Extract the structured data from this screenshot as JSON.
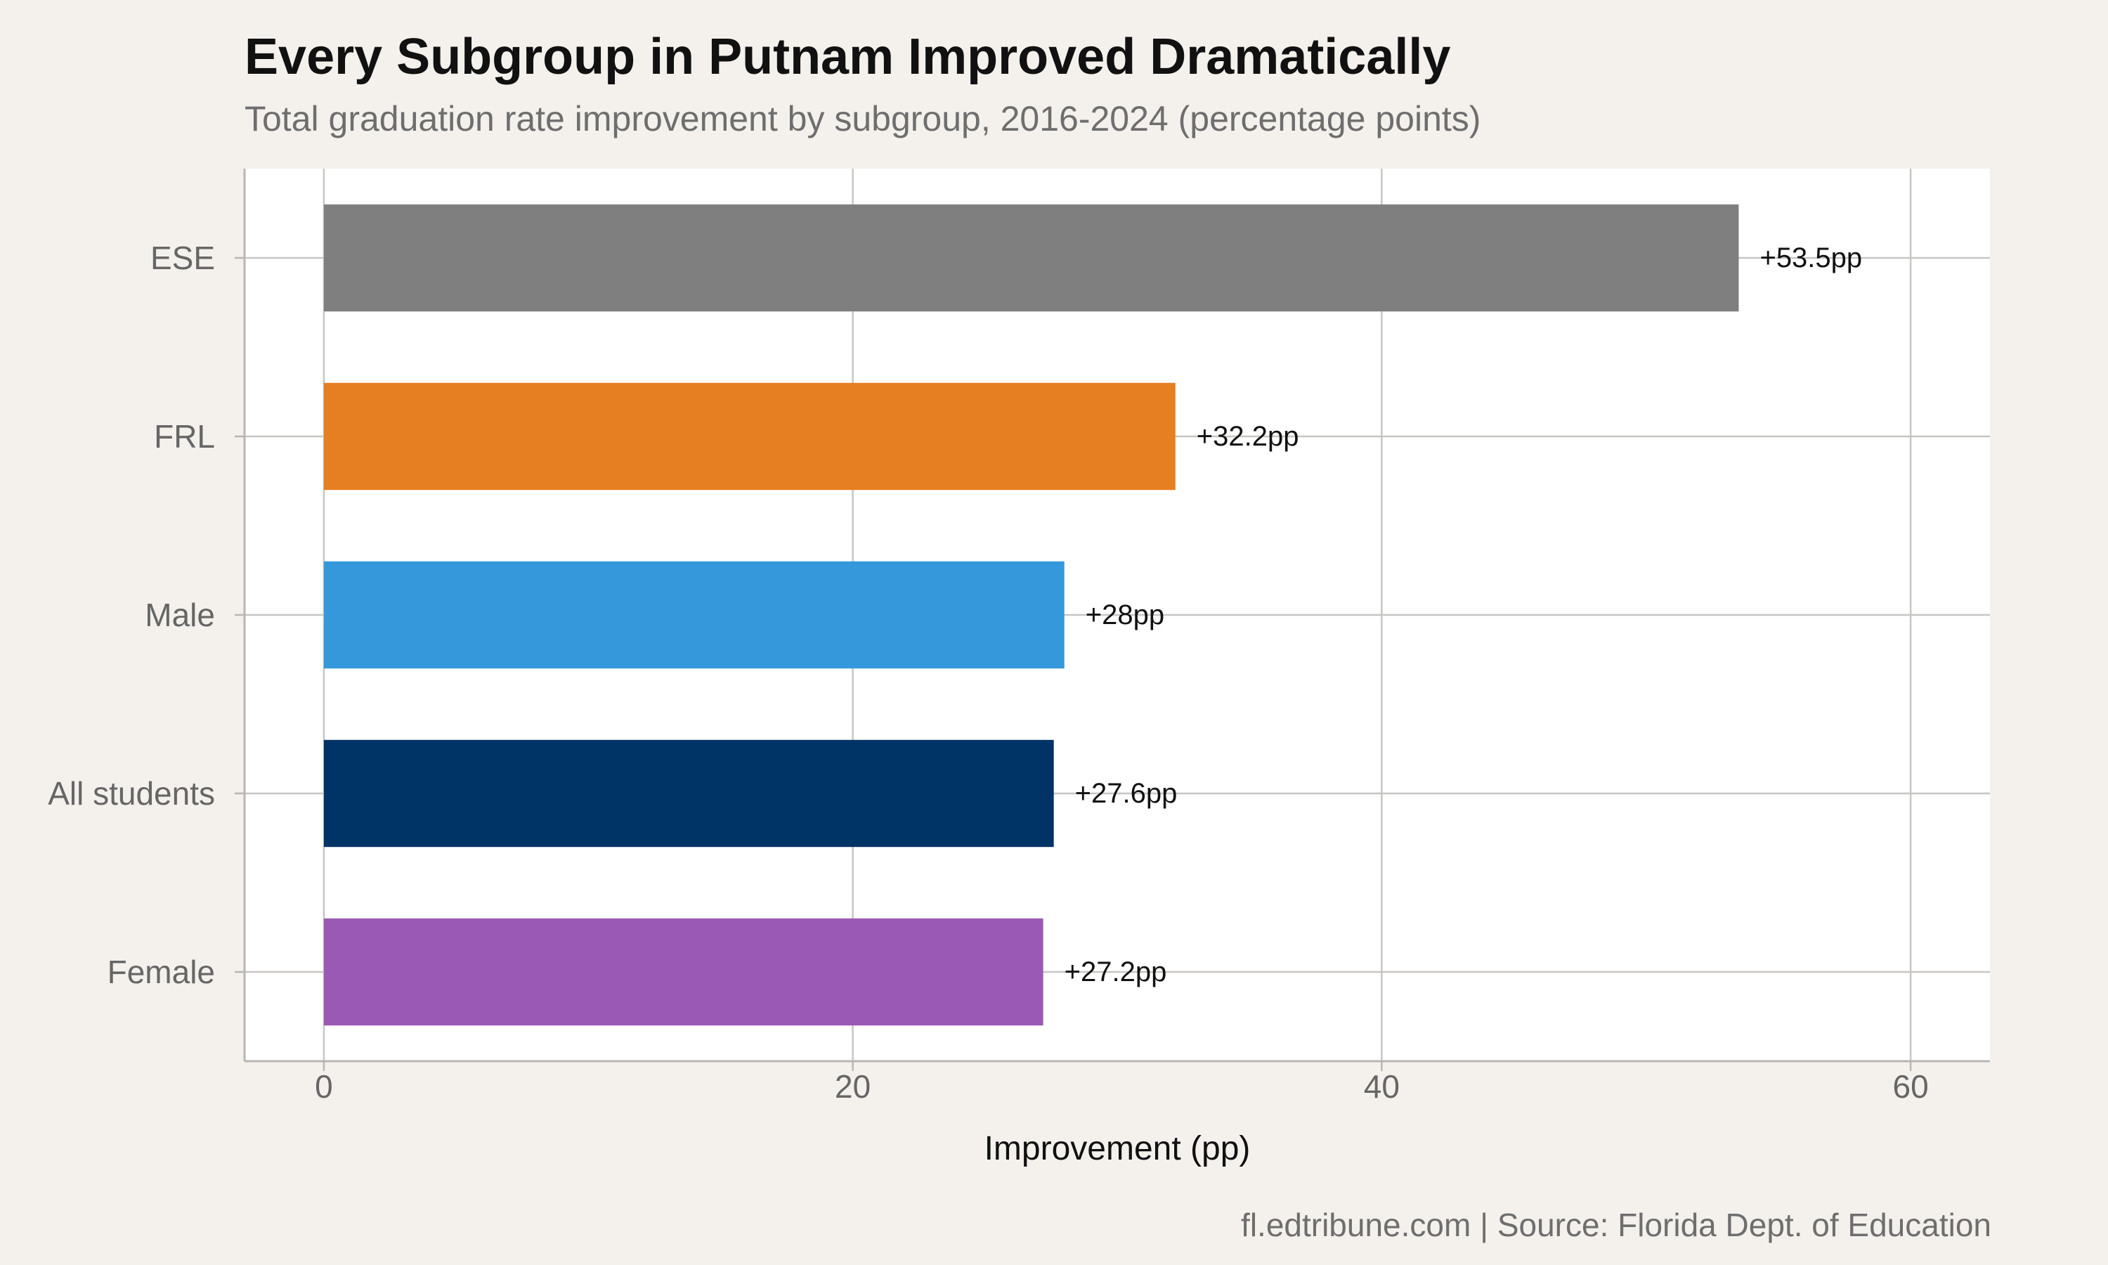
{
  "title": "Every Subgroup in Putnam Improved Dramatically",
  "subtitle": "Total graduation rate improvement by subgroup, 2016-2024 (percentage points)",
  "caption": "fl.edtribune.com | Source: Florida Dept. of Education",
  "chart_data": {
    "type": "bar",
    "orientation": "horizontal",
    "categories": [
      "ESE",
      "FRL",
      "Male",
      "All students",
      "Female"
    ],
    "values": [
      53.5,
      32.2,
      28,
      27.6,
      27.2
    ],
    "data_labels": [
      "+53.5pp",
      "+32.2pp",
      "+28pp",
      "+27.6pp",
      "+27.2pp"
    ],
    "colors": [
      "#7f7f7f",
      "#e67e22",
      "#3498db",
      "#003366",
      "#9b59b6"
    ],
    "xlabel": "Improvement (pp)",
    "ylabel": "",
    "xlim": [
      -3,
      63
    ],
    "xticks": [
      0,
      20,
      40,
      60
    ],
    "xtick_labels": [
      "0",
      "20",
      "40",
      "60"
    ],
    "grid": true,
    "legend": "none"
  }
}
